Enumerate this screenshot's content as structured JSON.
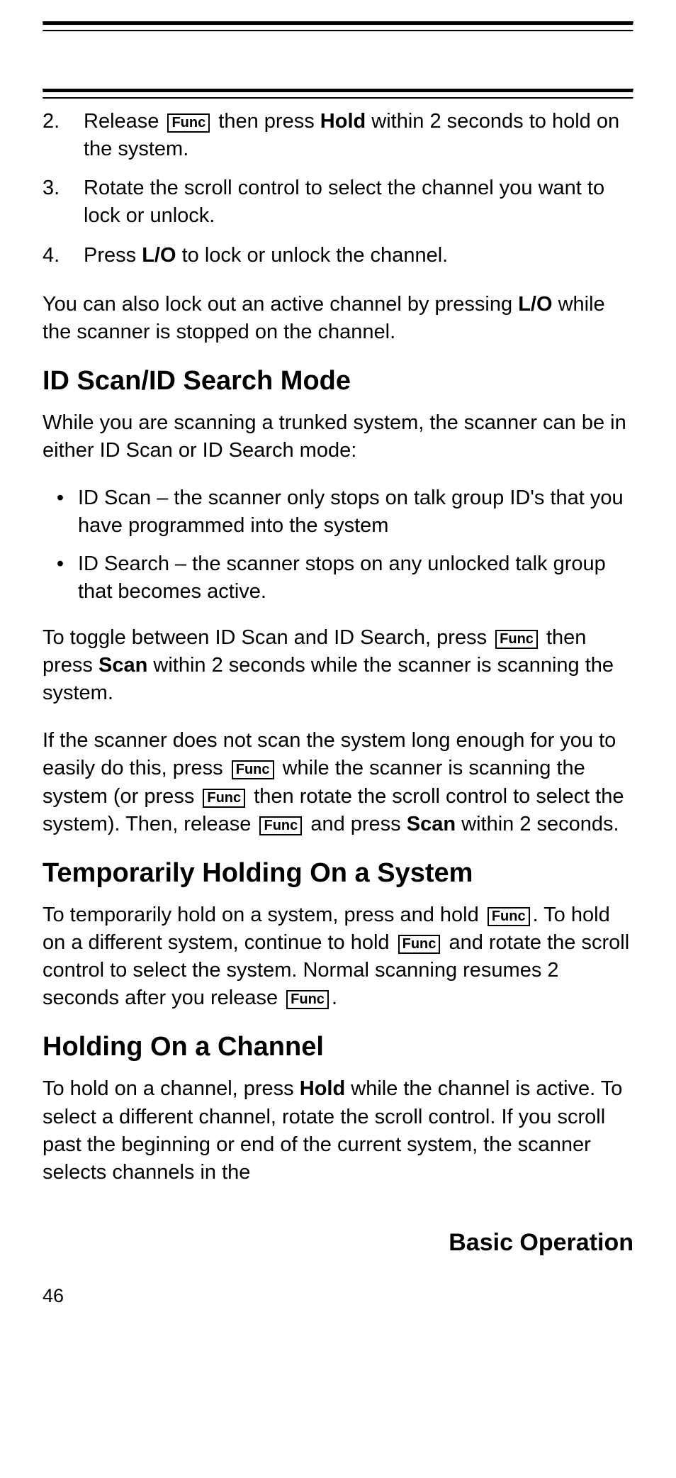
{
  "func_label": "Func",
  "steps": [
    {
      "n": "2.",
      "pre": "Release ",
      "func": true,
      "mid": " then press ",
      "bold1": "Hold",
      "tail": " within 2 seconds to hold on the system."
    },
    {
      "n": "3.",
      "text": "Rotate the scroll control to select the channel you want to lock or unlock."
    },
    {
      "n": "4.",
      "pre": "Press ",
      "bold1": "L/O",
      "tail": " to lock or unlock the channel."
    }
  ],
  "lockout_para": {
    "a": "You can also lock out an active channel by pressing ",
    "b": "L/O",
    "c": " while the scanner is stopped on the channel."
  },
  "sections": {
    "idmode": "ID Scan/ID Search Mode",
    "temphold": "Temporarily Holding On a System",
    "holdchan": "Holding On a Channel"
  },
  "id_intro": "While you are scanning a trunked system, the scanner can be in either ID Scan or ID Search mode:",
  "id_bullets": [
    "ID Scan – the scanner only stops on talk group ID's that you have programmed into the system",
    "ID Search – the scanner stops on any unlocked talk group that becomes active."
  ],
  "toggle_para": {
    "a": "To toggle between ID Scan and ID Search, press ",
    "b": " then press ",
    "scan": "Scan",
    "c": " within 2 seconds while the scanner is scanning the system."
  },
  "long_para": {
    "a": "If the scanner does not scan the system long enough for you to easily do this, press ",
    "b": " while the scanner is scanning the system (or press ",
    "c": " then rotate the scroll control to select the system). Then, release ",
    "d": " and press ",
    "scan": "Scan",
    "e": " within 2 seconds."
  },
  "temphold_para": {
    "a": "To temporarily hold on a system, press and hold ",
    "b": ". To hold on a different system, continue to hold ",
    "c": " and rotate the scroll control to select the system. Normal scanning resumes 2 seconds after you release ",
    "d": "."
  },
  "holdchan_para": {
    "a": "To hold on a channel, press ",
    "hold": "Hold",
    "b": " while the channel is active. To select a different channel, rotate the scroll control. If you scroll past the beginning or end of the current system, the scanner selects channels in the"
  },
  "footer_title": "Basic Operation",
  "page_number": "46",
  "bullet_char": "•"
}
